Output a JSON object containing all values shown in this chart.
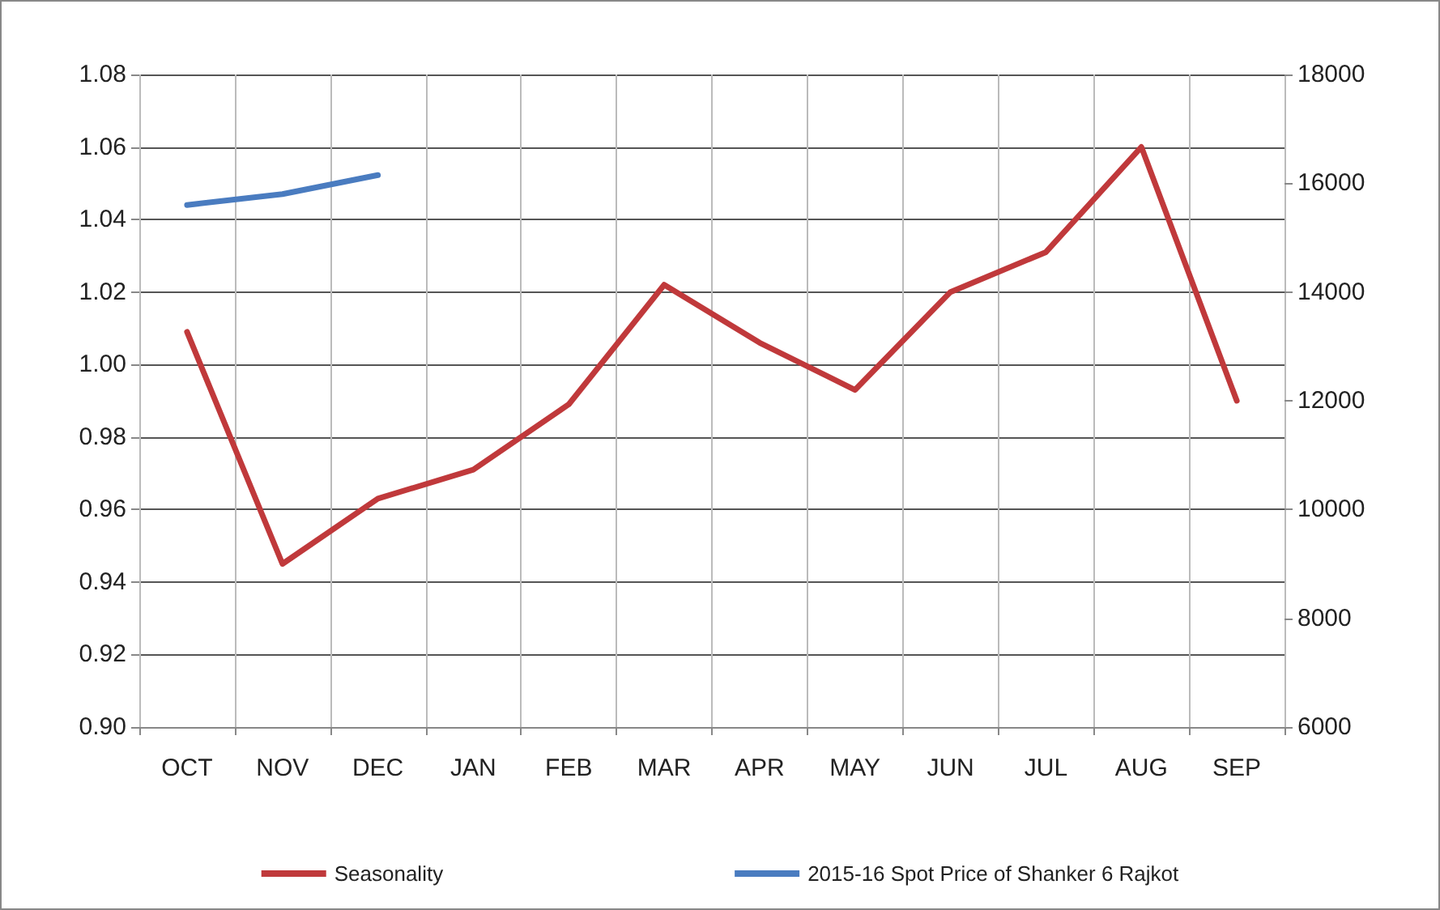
{
  "chart_data": {
    "type": "line",
    "categories": [
      "OCT",
      "NOV",
      "DEC",
      "JAN",
      "FEB",
      "MAR",
      "APR",
      "MAY",
      "JUN",
      "JUL",
      "AUG",
      "SEP"
    ],
    "series": [
      {
        "name": "Seasonality",
        "color": "#c0393b",
        "values": [
          1.009,
          0.945,
          0.963,
          0.971,
          0.989,
          1.022,
          1.006,
          0.993,
          1.02,
          1.031,
          1.06,
          0.99
        ]
      },
      {
        "name": "2015-16 Spot Price of Shanker 6 Rajkot",
        "color": "#4a7cc0",
        "axis": "y2",
        "values": [
          15600,
          15800,
          16150,
          null,
          null,
          null,
          null,
          null,
          null,
          null,
          null,
          null
        ]
      }
    ],
    "ylim": [
      0.9,
      1.08
    ],
    "yticks": [
      {
        "value": 0.9,
        "label": "0.90"
      },
      {
        "value": 0.92,
        "label": "0.92"
      },
      {
        "value": 0.94,
        "label": "0.94"
      },
      {
        "value": 0.96,
        "label": "0.96"
      },
      {
        "value": 0.98,
        "label": "0.98"
      },
      {
        "value": 1.0,
        "label": "1.00"
      },
      {
        "value": 1.02,
        "label": "1.02"
      },
      {
        "value": 1.04,
        "label": "1.04"
      },
      {
        "value": 1.06,
        "label": "1.06"
      },
      {
        "value": 1.08,
        "label": "1.08"
      }
    ],
    "y2lim": [
      6000,
      18000
    ],
    "y2ticks": [
      6000,
      8000,
      10000,
      12000,
      14000,
      16000,
      18000
    ],
    "grid": true,
    "legend": "bottom",
    "marker": "none",
    "line_style": "solid"
  }
}
